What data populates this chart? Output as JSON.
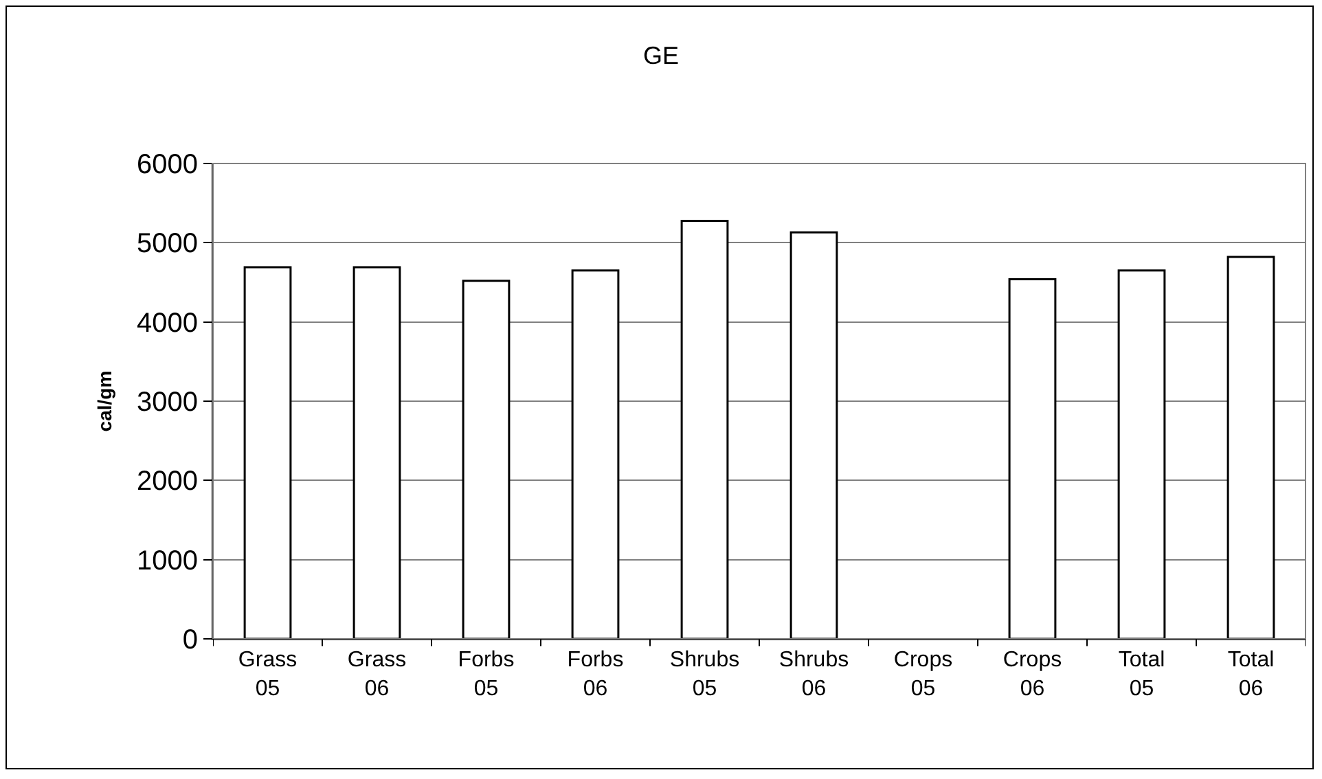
{
  "chart_data": {
    "type": "bar",
    "title": "GE",
    "ylabel": "cal/gm",
    "categories": [
      "Grass 05",
      "Grass 06",
      "Forbs 05",
      "Forbs 06",
      "Shrubs 05",
      "Shrubs 06",
      "Crops 05",
      "Crops 06",
      "Total 05",
      "Total 06"
    ],
    "values": [
      4690,
      4690,
      4520,
      4650,
      5275,
      5130,
      null,
      4540,
      4650,
      4820
    ],
    "color": "#ffffff",
    "ylim": [
      0,
      6000
    ],
    "yticks": [
      0,
      1000,
      2000,
      3000,
      4000,
      5000,
      6000
    ],
    "grid": "y",
    "legend": false
  }
}
